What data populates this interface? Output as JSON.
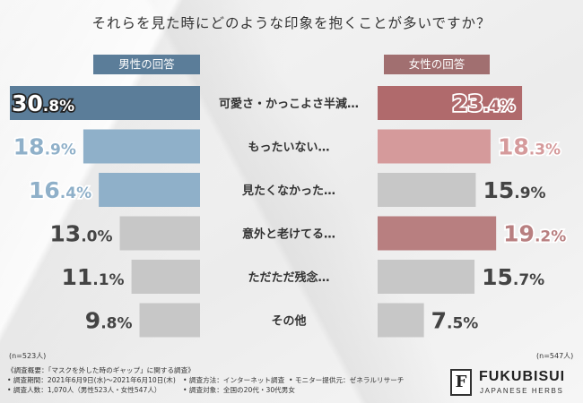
{
  "title": "それらを見た時にどのような印象を抱くことが多いですか？",
  "legend": {
    "male": "男性の回答",
    "female": "女性の回答"
  },
  "n": {
    "male": "(n=523人)",
    "female": "(n=547人)"
  },
  "footer": {
    "summary": "《調査概要：「マスクを外した時のギャップ」に関する調査》",
    "period": "• 調査期間：2021年6月9日(水)～2021年6月10日(木)",
    "method": "• 調査方法：インターネット調査",
    "monitor": "• モニター提供元：ゼネラルリサーチ",
    "people": "• 調査人数：1,070人（男性523人・女性547人）",
    "target": "• 調査対象：全国の20代・30代男女"
  },
  "brand": {
    "logo_letter": "F",
    "name": "FUKUBISUI",
    "sub": "JAPANESE HERBS"
  },
  "colors": {
    "male_dark": "#5b7d99",
    "male_mid": "#7e9eb8",
    "male_light": "#8fb0c9",
    "female_dark": "#b06a6c",
    "female_mid": "#b87f80",
    "female_light": "#d59a9b",
    "gray": "#c7c7c7"
  },
  "chart_data": {
    "type": "bar",
    "title": "それらを見た時にどのような印象を抱くことが多いですか？",
    "categories": [
      "可愛さ・かっこよさ半減…",
      "もったいない…",
      "見たくなかった…",
      "意外と老けてる…",
      "ただただ残念…",
      "その他"
    ],
    "series": [
      {
        "name": "男性の回答",
        "values": [
          30.8,
          18.9,
          16.4,
          13.0,
          11.1,
          9.8
        ]
      },
      {
        "name": "女性の回答",
        "values": [
          23.4,
          18.3,
          15.9,
          19.2,
          15.7,
          7.5
        ]
      }
    ],
    "unit": "%",
    "highlight": {
      "male": [
        "dark",
        "light",
        "light",
        "gray",
        "gray",
        "gray"
      ],
      "female": [
        "dark",
        "light",
        "gray",
        "mid",
        "gray",
        "gray"
      ]
    }
  }
}
